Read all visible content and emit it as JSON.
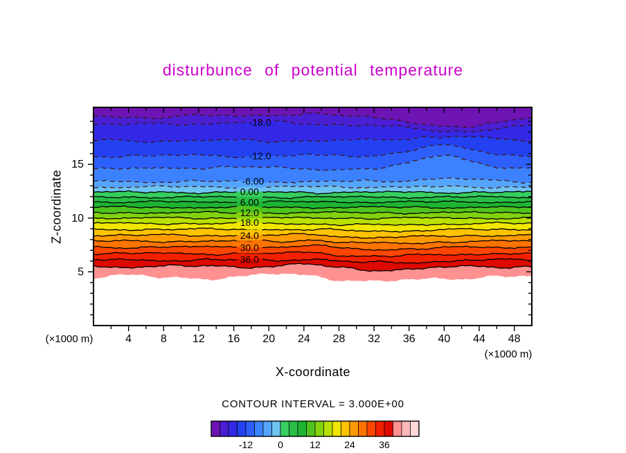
{
  "chart_data": {
    "type": "filled-contour",
    "title": "disturbunce of potential temperature",
    "title_color": "#CC00CC",
    "xlabel": "X-coordinate",
    "ylabel": "Z-coordinate",
    "x_axis_unit": "(×1000 m)",
    "y_axis_unit": "(×1000 m)",
    "footer": "CONTOUR INTERVAL = 3.000E+00",
    "contour_interval": 3.0,
    "xlim": [
      0,
      50
    ],
    "ylim": [
      0,
      20.3
    ],
    "xticks": [
      4,
      8,
      12,
      16,
      20,
      24,
      28,
      32,
      36,
      40,
      44,
      48
    ],
    "xticks_minor_step": 2,
    "yticks": [
      5,
      10,
      15
    ],
    "yticks_minor_step": 1,
    "grid": false,
    "legend_position": "colorbar-bottom",
    "line_styles": {
      "negative": {
        "color": "#401410",
        "dash": "7 5",
        "width": 1.2
      },
      "positive": {
        "color": "#000000",
        "width": 1.3
      }
    },
    "contour_levels": [
      {
        "value": -21,
        "z": 19.6,
        "amp": 0.15,
        "style": "dashed",
        "features": [
          {
            "x": 41,
            "sigma": 4.5,
            "amp": -1.2
          },
          {
            "x": 7,
            "sigma": 3,
            "amp": -0.3
          }
        ]
      },
      {
        "value": -18,
        "z": 18.7,
        "amp": 0.15,
        "style": "dashed",
        "features": [
          {
            "x": 41,
            "sigma": 5,
            "amp": -0.6
          },
          {
            "x": 18,
            "sigma": 6,
            "amp": 0.2
          }
        ]
      },
      {
        "value": -15,
        "z": 17.2,
        "amp": 0.15,
        "style": "dashed",
        "features": [
          {
            "x": 40,
            "sigma": 4,
            "amp": 0.4
          }
        ]
      },
      {
        "value": -12,
        "z": 15.8,
        "amp": 0.15,
        "style": "dashed",
        "features": [
          {
            "x": 40,
            "sigma": 3.5,
            "amp": 0.9
          }
        ]
      },
      {
        "value": -9,
        "z": 14.55,
        "amp": 0.14,
        "style": "dashed",
        "features": [
          {
            "x": 40,
            "sigma": 3,
            "amp": 1.35
          },
          {
            "x": 15,
            "sigma": 5,
            "amp": 0.2
          }
        ]
      },
      {
        "value": -6,
        "z": 13.4,
        "amp": 0.12,
        "style": "dashed",
        "features": [
          {
            "x": 40,
            "sigma": 3,
            "amp": 0.3
          }
        ]
      },
      {
        "value": -3,
        "z": 12.9,
        "amp": 0.1,
        "style": "dashed",
        "features": []
      },
      {
        "value": 0,
        "z": 12.4,
        "amp": 0.1,
        "style": "solid",
        "features": []
      },
      {
        "value": 3,
        "z": 11.95,
        "amp": 0.09,
        "style": "solid",
        "features": []
      },
      {
        "value": 6,
        "z": 11.5,
        "amp": 0.09,
        "style": "solid",
        "features": []
      },
      {
        "value": 9,
        "z": 11.0,
        "amp": 0.09,
        "style": "solid",
        "features": []
      },
      {
        "value": 12,
        "z": 10.5,
        "amp": 0.09,
        "style": "solid",
        "features": []
      },
      {
        "value": 15,
        "z": 10.0,
        "amp": 0.09,
        "style": "solid",
        "features": []
      },
      {
        "value": 18,
        "z": 9.5,
        "amp": 0.09,
        "style": "solid",
        "features": [
          {
            "x": 33,
            "sigma": 5,
            "amp": -0.15
          }
        ]
      },
      {
        "value": 21,
        "z": 8.95,
        "amp": 0.1,
        "style": "solid",
        "features": [
          {
            "x": 33,
            "sigma": 5,
            "amp": -0.15
          }
        ]
      },
      {
        "value": 24,
        "z": 8.4,
        "amp": 0.1,
        "style": "solid",
        "features": [
          {
            "x": 33,
            "sigma": 5,
            "amp": -0.2
          },
          {
            "x": 25,
            "sigma": 1.5,
            "amp": 0.15
          }
        ]
      },
      {
        "value": 27,
        "z": 7.85,
        "amp": 0.1,
        "style": "solid",
        "features": [
          {
            "x": 33,
            "sigma": 5,
            "amp": -0.2
          },
          {
            "x": 25,
            "sigma": 1.5,
            "amp": 0.18
          }
        ]
      },
      {
        "value": 30,
        "z": 7.3,
        "amp": 0.11,
        "style": "solid",
        "features": [
          {
            "x": 33,
            "sigma": 5,
            "amp": -0.2
          },
          {
            "x": 25,
            "sigma": 1.5,
            "amp": 0.2
          }
        ]
      },
      {
        "value": 33,
        "z": 6.7,
        "amp": 0.12,
        "style": "solid",
        "features": [
          {
            "x": 33,
            "sigma": 5,
            "amp": -0.25
          },
          {
            "x": 25,
            "sigma": 1.5,
            "amp": 0.2
          }
        ]
      },
      {
        "value": 36,
        "z": 6.1,
        "amp": 0.13,
        "style": "solid",
        "features": [
          {
            "x": 33,
            "sigma": 5,
            "amp": -0.25
          },
          {
            "x": 25,
            "sigma": 1.5,
            "amp": 0.2
          }
        ]
      },
      {
        "value": 39,
        "z": 5.5,
        "amp": 0.15,
        "style": "solid",
        "features": [
          {
            "x": 33,
            "sigma": 5,
            "amp": -0.3
          },
          {
            "x": 24,
            "sigma": 2,
            "amp": 0.25
          }
        ]
      },
      {
        "value": 42,
        "z": 4.45,
        "amp": 0.22,
        "style": "none",
        "features": [
          {
            "x": 33,
            "sigma": 4,
            "amp": -0.35
          },
          {
            "x": 22,
            "sigma": 4,
            "amp": 0.3
          },
          {
            "x": 3,
            "sigma": 2,
            "amp": 0.2
          },
          {
            "x": 46,
            "sigma": 3,
            "amp": 0.15
          }
        ]
      }
    ],
    "contour_labels": [
      {
        "value": -18,
        "text": "-18.0",
        "x": 19
      },
      {
        "value": -12,
        "text": "-12.0",
        "x": 19
      },
      {
        "value": -6,
        "text": "-6.00",
        "x": 18.2
      },
      {
        "value": 0,
        "text": "0.00",
        "x": 17.8
      },
      {
        "value": 6,
        "text": "6.00",
        "x": 17.8
      },
      {
        "value": 12,
        "text": "12.0",
        "x": 17.8
      },
      {
        "value": 18,
        "text": "18.0",
        "x": 17.8
      },
      {
        "value": 24,
        "text": "24.0",
        "x": 17.8
      },
      {
        "value": 30,
        "text": "30.0",
        "x": 17.8
      },
      {
        "value": 36,
        "text": "36.0",
        "x": 17.8
      }
    ],
    "fill_bands": [
      {
        "from": -24,
        "color": "#6E14B4"
      },
      {
        "from": -21,
        "color": "#4A1ED2"
      },
      {
        "from": -18,
        "color": "#3228E6"
      },
      {
        "from": -15,
        "color": "#2341F0"
      },
      {
        "from": -12,
        "color": "#2D5FFA"
      },
      {
        "from": -9,
        "color": "#3C82FF"
      },
      {
        "from": -6,
        "color": "#55A5FF"
      },
      {
        "from": -3,
        "color": "#6EC3F0"
      },
      {
        "from": 0,
        "color": "#37CD5F"
      },
      {
        "from": 3,
        "color": "#28BE46"
      },
      {
        "from": 6,
        "color": "#1EB432"
      },
      {
        "from": 9,
        "color": "#50C31E"
      },
      {
        "from": 12,
        "color": "#82D20F"
      },
      {
        "from": 15,
        "color": "#B9E100"
      },
      {
        "from": 18,
        "color": "#F0E600"
      },
      {
        "from": 21,
        "color": "#FFC300"
      },
      {
        "from": 24,
        "color": "#FF9B00"
      },
      {
        "from": 27,
        "color": "#FF7300"
      },
      {
        "from": 30,
        "color": "#FF4600"
      },
      {
        "from": 33,
        "color": "#F32000"
      },
      {
        "from": 36,
        "color": "#DC0A00"
      },
      {
        "from": 39,
        "color": "#FF9191"
      },
      {
        "from": 42,
        "color": "#FFB9B9"
      },
      {
        "from": 45,
        "color": "#FFD7D7"
      }
    ],
    "colorbar": {
      "min": -24,
      "max": 48,
      "cell_step": 3,
      "ticks": [
        -12,
        0,
        12,
        24,
        36
      ]
    }
  }
}
